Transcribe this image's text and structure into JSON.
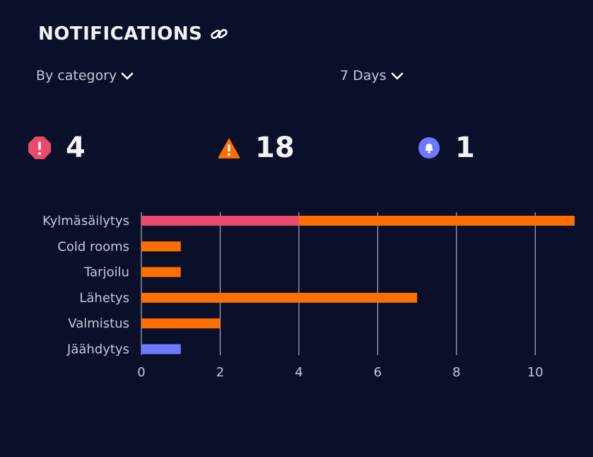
{
  "header": {
    "title": "NOTIFICATIONS",
    "link_icon": "link-icon"
  },
  "filters": {
    "category": "By category",
    "range": "7 Days",
    "chevron_icon": "chevron-down-icon"
  },
  "stats": [
    {
      "icon": "critical-alert-icon",
      "value": "4",
      "color": "#e94b6a"
    },
    {
      "icon": "warning-triangle-icon",
      "value": "18",
      "color": "#ff6f00"
    },
    {
      "icon": "bell-icon",
      "value": "1",
      "color": "#6f79ff"
    }
  ],
  "colors": {
    "background": "#0a1029",
    "critical": "#e94b6a",
    "warning": "#ff6f00",
    "info": "#6f79ff",
    "grid": "#c8cbd8",
    "text": "#c6c9dc"
  },
  "chart_data": {
    "type": "bar",
    "orientation": "horizontal",
    "stacked": true,
    "categories": [
      "Kylmäsäilytys",
      "Cold rooms",
      "Tarjoilu",
      "Lähetys",
      "Valmistus",
      "Jäähdytys"
    ],
    "series": [
      {
        "values": [
          4,
          0,
          0,
          0,
          0,
          0
        ],
        "color": "#e94b6a"
      },
      {
        "values": [
          7,
          1,
          1,
          7,
          2,
          0
        ],
        "color": "#ff6f00"
      },
      {
        "values": [
          0,
          0,
          0,
          0,
          0,
          1
        ],
        "color": "#6f79ff"
      }
    ],
    "xlim": [
      0,
      11
    ],
    "xticks": [
      0,
      2,
      4,
      6,
      8,
      10
    ],
    "grid": true,
    "legend": false,
    "title": "",
    "xlabel": "",
    "ylabel": ""
  }
}
